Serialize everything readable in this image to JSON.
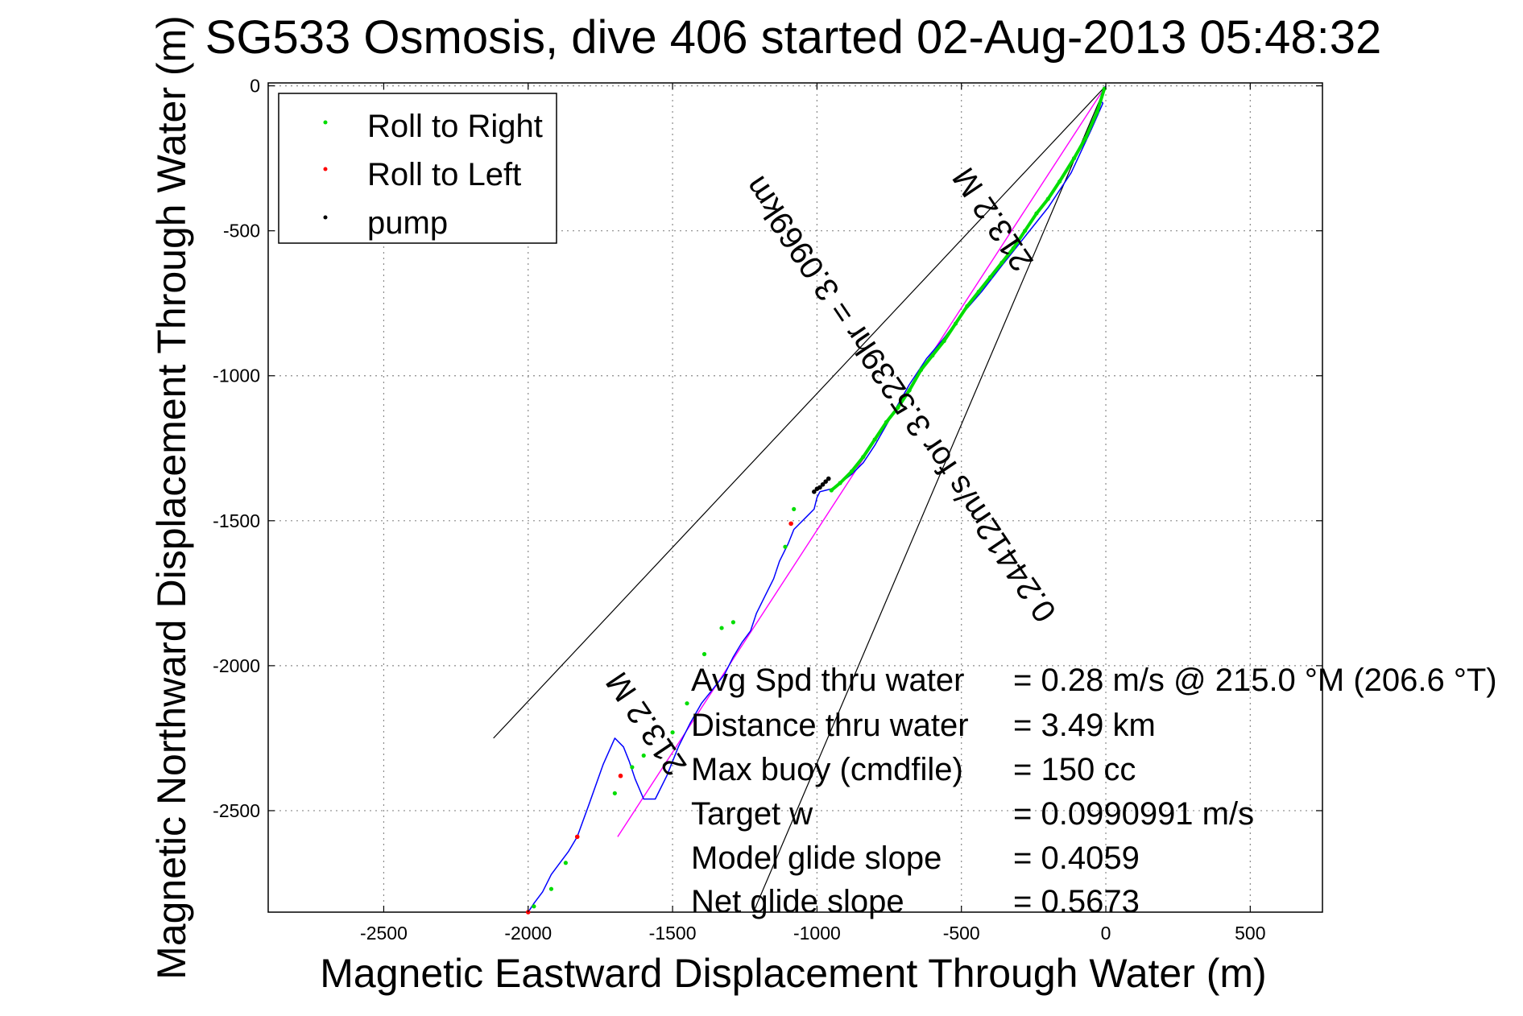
{
  "chart_data": {
    "type": "scatter",
    "title": "SG533 Osmosis, dive 406 started 02-Aug-2013 05:48:32",
    "xlabel": "Magnetic Eastward Displacement Through Water (m)",
    "ylabel": "Magnetic Northward Displacement Through Water (m)",
    "xlim": [
      -2900,
      750
    ],
    "ylim": [
      -2850,
      10
    ],
    "x_ticks": [
      -2500,
      -2000,
      -1500,
      -1000,
      -500,
      0,
      500
    ],
    "x_tick_labels": [
      "-2500",
      "-2000",
      "-1500",
      "-1000",
      "-500",
      "0",
      "500"
    ],
    "y_ticks": [
      0,
      -500,
      -1000,
      -1500,
      -2000,
      -2500
    ],
    "y_tick_labels": [
      "0",
      "-500",
      "-1000",
      "-1500",
      "-2000",
      "-2500"
    ],
    "grid": true,
    "legend_position": "top-left",
    "legend": [
      {
        "label": "Roll to Right",
        "color": "#00dd00"
      },
      {
        "label": "Roll to Left",
        "color": "#ff0000"
      },
      {
        "label": "pump",
        "color": "#000000"
      }
    ],
    "series": [
      {
        "name": "track",
        "color": "#0000ff",
        "x": [
          0,
          -8,
          -20,
          -10,
          -50,
          -120,
          -200,
          -280,
          -360,
          -430,
          -500,
          -560,
          -620,
          -680,
          -720,
          -760,
          -800,
          -840,
          -880,
          -920,
          -950,
          -970,
          -990,
          -1000,
          -1010,
          -1040,
          -1060,
          -1080,
          -1100,
          -1130,
          -1150,
          -1180,
          -1210,
          -1230,
          -1260,
          -1290,
          -1320,
          -1360,
          -1400,
          -1440,
          -1480,
          -1520,
          -1560,
          -1600,
          -1630,
          -1650,
          -1670,
          -1700,
          -1740,
          -1790,
          -1830,
          -1860,
          -1890,
          -1920,
          -1950,
          -1980,
          -2000
        ],
        "y": [
          0,
          -20,
          -50,
          -60,
          -150,
          -300,
          -420,
          -520,
          -620,
          -710,
          -790,
          -870,
          -940,
          -1030,
          -1100,
          -1170,
          -1240,
          -1300,
          -1340,
          -1370,
          -1390,
          -1395,
          -1400,
          -1420,
          -1460,
          -1490,
          -1510,
          -1530,
          -1580,
          -1640,
          -1700,
          -1760,
          -1820,
          -1880,
          -1920,
          -1970,
          -2030,
          -2080,
          -2130,
          -2200,
          -2280,
          -2380,
          -2460,
          -2460,
          -2390,
          -2330,
          -2280,
          -2250,
          -2340,
          -2480,
          -2590,
          -2640,
          -2680,
          -2720,
          -2780,
          -2820,
          -2850
        ]
      },
      {
        "name": "Roll to Right",
        "color": "#00dd00",
        "x": [
          -5,
          -30,
          -70,
          -110,
          -160,
          -200,
          -240,
          -280,
          -320,
          -360,
          -400,
          -440,
          -480,
          -520,
          -560,
          -600,
          -640,
          -680,
          -720,
          -760,
          -800,
          -840,
          -880,
          -920,
          -950,
          -1080,
          -1110,
          -1290,
          -1330,
          -1390,
          -1450,
          -1500,
          -1600,
          -1640,
          -1700,
          -1870,
          -1920,
          -1980
        ],
        "y": [
          -10,
          -90,
          -180,
          -250,
          -330,
          -390,
          -440,
          -500,
          -560,
          -610,
          -660,
          -710,
          -760,
          -820,
          -880,
          -930,
          -980,
          -1050,
          -1110,
          -1160,
          -1220,
          -1280,
          -1330,
          -1370,
          -1395,
          -1460,
          -1590,
          -1850,
          -1870,
          -1960,
          -2130,
          -2230,
          -2310,
          -2350,
          -2440,
          -2680,
          -2770,
          -2830
        ]
      },
      {
        "name": "Roll to Left",
        "color": "#ff0000",
        "x": [
          -1090,
          -1680,
          -1830,
          -2000
        ],
        "y": [
          -1510,
          -2380,
          -2590,
          -2850
        ]
      },
      {
        "name": "pump",
        "color": "#000000",
        "x": [
          -1000,
          -990,
          -980,
          -970,
          -960,
          -1010
        ],
        "y": [
          -1390,
          -1385,
          -1375,
          -1365,
          -1355,
          -1400
        ]
      },
      {
        "name": "depth-averaged current",
        "color": "#ff00ff",
        "x": [
          0,
          -1690
        ],
        "y": [
          0,
          -2590
        ]
      },
      {
        "name": "heading-line-1",
        "color": "#000000",
        "x": [
          0,
          -2120
        ],
        "y": [
          0,
          -2250
        ]
      },
      {
        "name": "heading-line-2",
        "color": "#000000",
        "x": [
          0,
          -1220
        ],
        "y": [
          0,
          -2850
        ]
      }
    ],
    "annotations": [
      {
        "text": "213.2 M",
        "x": -360,
        "y": -440,
        "rotation": 236
      },
      {
        "text": "0.24412m/s for 3.5239hr = 3.0969km",
        "x": -680,
        "y": -1060,
        "rotation": 236
      },
      {
        "text": "213.2 M",
        "x": -1560,
        "y": -2180,
        "rotation": 236
      }
    ],
    "stats": [
      {
        "label": "Avg Spd thru water",
        "value": "=  0.28 m/s @ 215.0 °M (206.6 °T)"
      },
      {
        "label": "Distance thru water",
        "value": "=  3.49 km"
      },
      {
        "label": "Max buoy (cmdfile)",
        "value": "= 150 cc"
      },
      {
        "label": "Target w",
        "value": "= 0.0990991 m/s"
      },
      {
        "label": "Model glide slope",
        "value": "= 0.4059"
      },
      {
        "label": "Net glide slope",
        "value": "= 0.5673"
      }
    ]
  }
}
